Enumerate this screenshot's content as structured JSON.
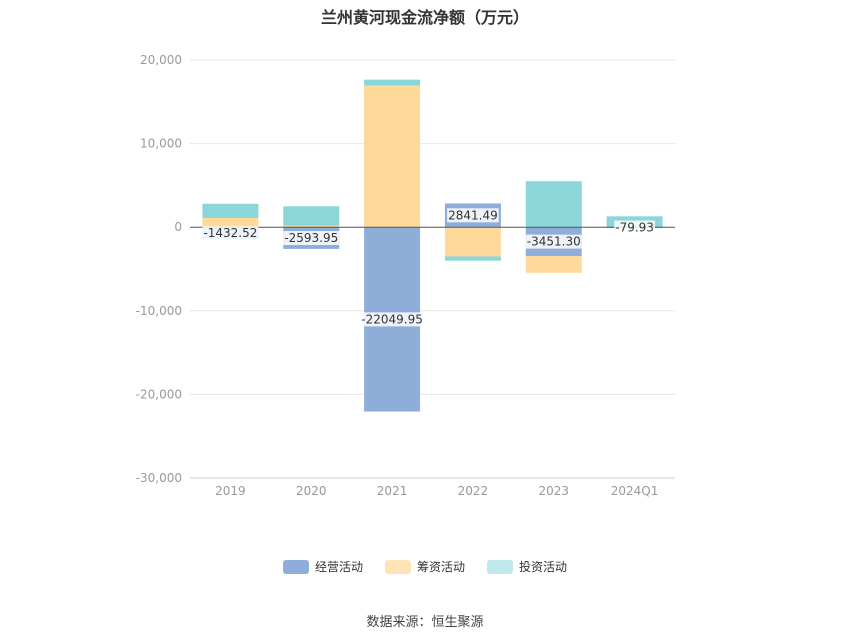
{
  "chart_data": {
    "type": "bar",
    "stacked": true,
    "title": "兰州黄河现金流净额（万元）",
    "categories": [
      "2019",
      "2020",
      "2021",
      "2022",
      "2023",
      "2024Q1"
    ],
    "ylim": [
      -30000,
      20000
    ],
    "yticks": [
      20000,
      10000,
      0,
      -10000,
      -20000,
      -30000
    ],
    "ytick_labels": [
      "20,000",
      "10,000",
      "0",
      "-10,000",
      "-20,000",
      "-30,000"
    ],
    "grid": true,
    "legend_position": "bottom",
    "series": [
      {
        "name": "经营活动",
        "color": "#8eadd9",
        "values": [
          -1432.52,
          -2593.95,
          -22049.95,
          2841.49,
          -3451.3,
          -79.93
        ],
        "labels": [
          "-1432.52",
          "-2593.95",
          "-22049.95",
          "2841.49",
          "-3451.30",
          "-79.93"
        ]
      },
      {
        "name": "筹资活动",
        "color": "#ffd99a",
        "values": [
          1100,
          200,
          16950,
          -3500,
          -2000,
          0
        ]
      },
      {
        "name": "投资活动",
        "color": "#8ad6d9",
        "values": [
          1700,
          2300,
          700,
          -500,
          5500,
          1300
        ]
      }
    ]
  },
  "legend": {
    "items": [
      {
        "label": "经营活动",
        "color": "#8eadd9"
      },
      {
        "label": "筹资活动",
        "color": "#ffe4b8"
      },
      {
        "label": "投资活动",
        "color": "#bfe9ea"
      }
    ]
  },
  "source_text": "数据来源：恒生聚源"
}
